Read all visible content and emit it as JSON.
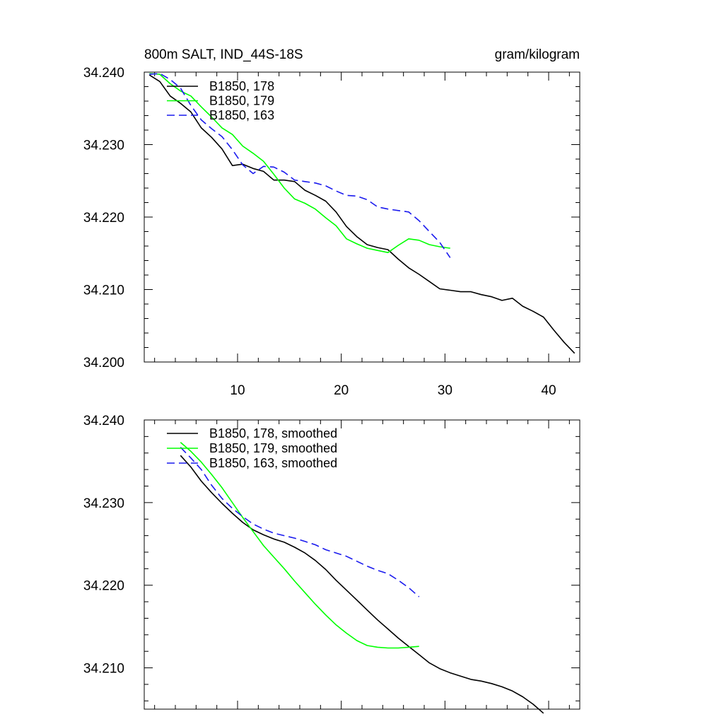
{
  "chart_data": [
    {
      "type": "line",
      "title_left": "800m SALT, IND_44S-18S",
      "title_right": "gram/kilogram",
      "xlabel": "",
      "ylabel": "",
      "xlim": [
        1,
        43
      ],
      "ylim": [
        34.2,
        34.24
      ],
      "xticks": [
        10,
        20,
        30,
        40
      ],
      "xtick_labels": [
        "10",
        "20",
        "30",
        "40"
      ],
      "yticks": [
        34.2,
        34.21,
        34.22,
        34.23,
        34.24
      ],
      "ytick_labels": [
        "34.200",
        "34.210",
        "34.220",
        "34.230",
        "34.240"
      ],
      "legend_position": "top-left",
      "series": [
        {
          "name": "B1850, 178",
          "color": "#000000",
          "dash": "solid",
          "x": [
            1.5,
            2.5,
            3.5,
            4.5,
            5.5,
            6.5,
            7.5,
            8.5,
            9.5,
            10.5,
            11.5,
            12.5,
            13.5,
            14.5,
            15.5,
            16.5,
            17.5,
            18.5,
            19.5,
            20.5,
            21.5,
            22.5,
            23.5,
            24.5,
            25.5,
            26.5,
            27.5,
            28.5,
            29.5,
            30.5,
            31.5,
            32.5,
            33.5,
            34.5,
            35.5,
            36.5,
            37.5,
            38.5,
            39.5,
            40.5,
            41.5,
            42.5
          ],
          "values": [
            34.2396,
            34.2387,
            34.2367,
            34.2357,
            34.2345,
            34.2323,
            34.231,
            34.2294,
            34.2271,
            34.2273,
            34.2267,
            34.2263,
            34.2251,
            34.2251,
            34.2249,
            34.2237,
            34.223,
            34.2222,
            34.2207,
            34.2187,
            34.2173,
            34.2162,
            34.2158,
            34.2155,
            34.2142,
            34.213,
            34.2121,
            34.2111,
            34.2101,
            34.2099,
            34.2097,
            34.2097,
            34.2093,
            34.209,
            34.2085,
            34.2088,
            34.2077,
            34.207,
            34.2062,
            34.2044,
            34.2027,
            34.2012
          ]
        },
        {
          "name": "B1850, 179",
          "color": "#00ff00",
          "dash": "solid",
          "x": [
            1.5,
            2.5,
            3.5,
            4.5,
            5.5,
            6.5,
            7.5,
            8.5,
            9.5,
            10.5,
            11.5,
            12.5,
            13.5,
            14.5,
            15.5,
            16.5,
            17.5,
            18.5,
            19.5,
            20.5,
            21.5,
            22.5,
            23.5,
            24.5,
            25.5,
            26.5,
            27.5,
            28.5,
            29.5,
            30.5
          ],
          "values": [
            34.2398,
            34.2397,
            34.2384,
            34.2374,
            34.2367,
            34.2352,
            34.2338,
            34.2323,
            34.2314,
            34.2298,
            34.2288,
            34.2277,
            34.2259,
            34.224,
            34.2225,
            34.2219,
            34.2211,
            34.2199,
            34.2188,
            34.217,
            34.2163,
            34.2157,
            34.2154,
            34.2151,
            34.2161,
            34.217,
            34.2168,
            34.2162,
            34.2159,
            34.2157
          ]
        },
        {
          "name": "B1850, 163",
          "color": "#1a1aee",
          "dash": "dashed",
          "x": [
            1.5,
            2.5,
            3.5,
            4.5,
            5.5,
            6.5,
            7.5,
            8.5,
            9.5,
            10.5,
            11.5,
            12.5,
            13.5,
            14.5,
            15.5,
            16.5,
            17.5,
            18.5,
            19.5,
            20.5,
            21.5,
            22.5,
            23.5,
            24.5,
            25.5,
            26.5,
            27.5,
            28.5,
            29.5,
            30.5
          ],
          "values": [
            34.2397,
            34.2398,
            34.239,
            34.2378,
            34.2354,
            34.2334,
            34.2322,
            34.2311,
            34.2293,
            34.2272,
            34.226,
            34.227,
            34.2269,
            34.2262,
            34.2251,
            34.2249,
            34.2247,
            34.2243,
            34.2236,
            34.223,
            34.2229,
            34.2224,
            34.2214,
            34.2211,
            34.2209,
            34.2207,
            34.2195,
            34.218,
            34.2165,
            34.2144
          ]
        }
      ]
    },
    {
      "type": "line",
      "title_left": "",
      "title_right": "",
      "xlabel": "",
      "ylabel": "",
      "xlim": [
        1,
        43
      ],
      "ylim": [
        34.205,
        34.24
      ],
      "xticks": [
        10,
        20,
        30,
        40
      ],
      "xtick_labels": [],
      "yticks": [
        34.21,
        34.22,
        34.23,
        34.24
      ],
      "ytick_labels": [
        "34.210",
        "34.220",
        "34.230",
        "34.240"
      ],
      "legend_position": "top-left",
      "series": [
        {
          "name": "B1850, 178, smoothed",
          "color": "#000000",
          "dash": "solid",
          "x": [
            4.5,
            5.5,
            6.5,
            7.5,
            8.5,
            9.5,
            10.5,
            11.5,
            12.5,
            13.5,
            14.5,
            15.5,
            16.5,
            17.5,
            18.5,
            19.5,
            20.5,
            21.5,
            22.5,
            23.5,
            24.5,
            25.5,
            26.5,
            27.5,
            28.5,
            29.5,
            30.5,
            31.5,
            32.5,
            33.5,
            34.5,
            35.5,
            36.5,
            37.5,
            38.5,
            39.5
          ],
          "values": [
            34.2357,
            34.2343,
            34.2326,
            34.2312,
            34.2299,
            34.2287,
            34.2276,
            34.2267,
            34.2261,
            34.2256,
            34.2252,
            34.2246,
            34.2239,
            34.223,
            34.2219,
            34.2206,
            34.2194,
            34.2182,
            34.217,
            34.2158,
            34.2147,
            34.2136,
            34.2126,
            34.2116,
            34.2106,
            34.2099,
            34.2094,
            34.209,
            34.2086,
            34.2084,
            34.2081,
            34.2077,
            34.2072,
            34.2065,
            34.2056,
            34.2045
          ]
        },
        {
          "name": "B1850, 179, smoothed",
          "color": "#00ff00",
          "dash": "solid",
          "x": [
            4.5,
            5.5,
            6.5,
            7.5,
            8.5,
            9.5,
            10.5,
            11.5,
            12.5,
            13.5,
            14.5,
            15.5,
            16.5,
            17.5,
            18.5,
            19.5,
            20.5,
            21.5,
            22.5,
            23.5,
            24.5,
            25.5,
            26.5,
            27.5
          ],
          "values": [
            34.2373,
            34.2362,
            34.2349,
            34.2334,
            34.2318,
            34.23,
            34.2282,
            34.2265,
            34.2248,
            34.2234,
            34.222,
            34.2205,
            34.2191,
            34.2177,
            34.2164,
            34.2152,
            34.2142,
            34.2133,
            34.2127,
            34.2125,
            34.2124,
            34.2124,
            34.2125,
            34.2126
          ]
        },
        {
          "name": "B1850, 163, smoothed",
          "color": "#1a1aee",
          "dash": "dashed",
          "x": [
            4.5,
            5.5,
            6.5,
            7.5,
            8.5,
            9.5,
            10.5,
            11.5,
            12.5,
            13.5,
            14.5,
            15.5,
            16.5,
            17.5,
            18.5,
            19.5,
            20.5,
            21.5,
            22.5,
            23.5,
            24.5,
            25.5,
            26.5,
            27.5
          ],
          "values": [
            34.2367,
            34.2354,
            34.234,
            34.2321,
            34.2305,
            34.2293,
            34.2283,
            34.2274,
            34.2268,
            34.2263,
            34.226,
            34.2257,
            34.2253,
            34.2249,
            34.2243,
            34.2239,
            34.2235,
            34.2229,
            34.2223,
            34.2218,
            34.2214,
            34.2206,
            34.2197,
            34.2186
          ]
        }
      ]
    }
  ]
}
